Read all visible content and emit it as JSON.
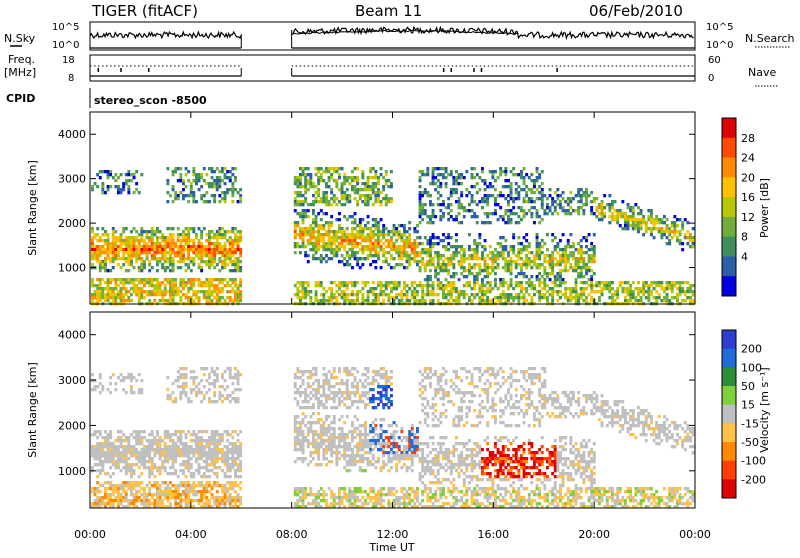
{
  "header": {
    "title": "TIGER (fitACF)",
    "beam": "Beam 11",
    "date": "06/Feb/2010",
    "cpid_label": "CPID",
    "cpid_value": "stereo_scon -8500"
  },
  "top_panels": {
    "nsky_label": "N.Sky",
    "nsky_ticks": [
      "10^5",
      "10^0"
    ],
    "nsearch_label": "N.Search",
    "nsearch_ticks": [
      "10^5",
      "10^0"
    ],
    "freq_label_1": "Freq.",
    "freq_label_2": "[MHz]",
    "freq_ticks": [
      "18",
      "8"
    ],
    "nave_label": "Nave",
    "nave_ticks": [
      "60",
      "0"
    ]
  },
  "chart_data": [
    {
      "type": "heatmap",
      "name": "power",
      "ylabel": "Slant Range [km]",
      "xlabel": "Time UT",
      "xlim": [
        "00:00",
        "24:00"
      ],
      "x_ticks": [
        "00:00",
        "04:00",
        "08:00",
        "12:00",
        "16:00",
        "20:00",
        "00:00"
      ],
      "ylim": [
        180,
        4500
      ],
      "y_ticks": [
        "1000",
        "2000",
        "3000",
        "4000"
      ],
      "data_gaps_ut": [
        [
          6.0,
          8.0
        ]
      ],
      "colorbar": {
        "label": "Power [dB]",
        "ticks": [
          "28",
          "24",
          "20",
          "16",
          "12",
          "8",
          "4"
        ],
        "colors": [
          "#e00000",
          "#ff4a00",
          "#ff8c00",
          "#ffc000",
          "#b8c800",
          "#6fae3b",
          "#3e8f5a",
          "#2c5fa8",
          "#0000e0"
        ]
      }
    },
    {
      "type": "heatmap",
      "name": "velocity",
      "ylabel": "Slant Range [km]",
      "xlabel": "Time UT",
      "xlim": [
        "00:00",
        "24:00"
      ],
      "x_ticks": [
        "00:00",
        "04:00",
        "08:00",
        "12:00",
        "16:00",
        "20:00",
        "00:00"
      ],
      "ylim": [
        180,
        4500
      ],
      "y_ticks": [
        "1000",
        "2000",
        "3000",
        "4000"
      ],
      "data_gaps_ut": [
        [
          6.0,
          8.0
        ]
      ],
      "colorbar": {
        "label": "Velocity [m s⁻¹]",
        "ticks": [
          "200",
          "100",
          "50",
          "15",
          "-15",
          "-50",
          "-100",
          "-200"
        ],
        "colors": [
          "#2a3fd0",
          "#1f6bd8",
          "#2e8b3a",
          "#7fd03a",
          "#c0c0c0",
          "#ffc14a",
          "#ff8a00",
          "#ff4000",
          "#e00000"
        ]
      }
    }
  ],
  "x_axis_label": "Time UT"
}
